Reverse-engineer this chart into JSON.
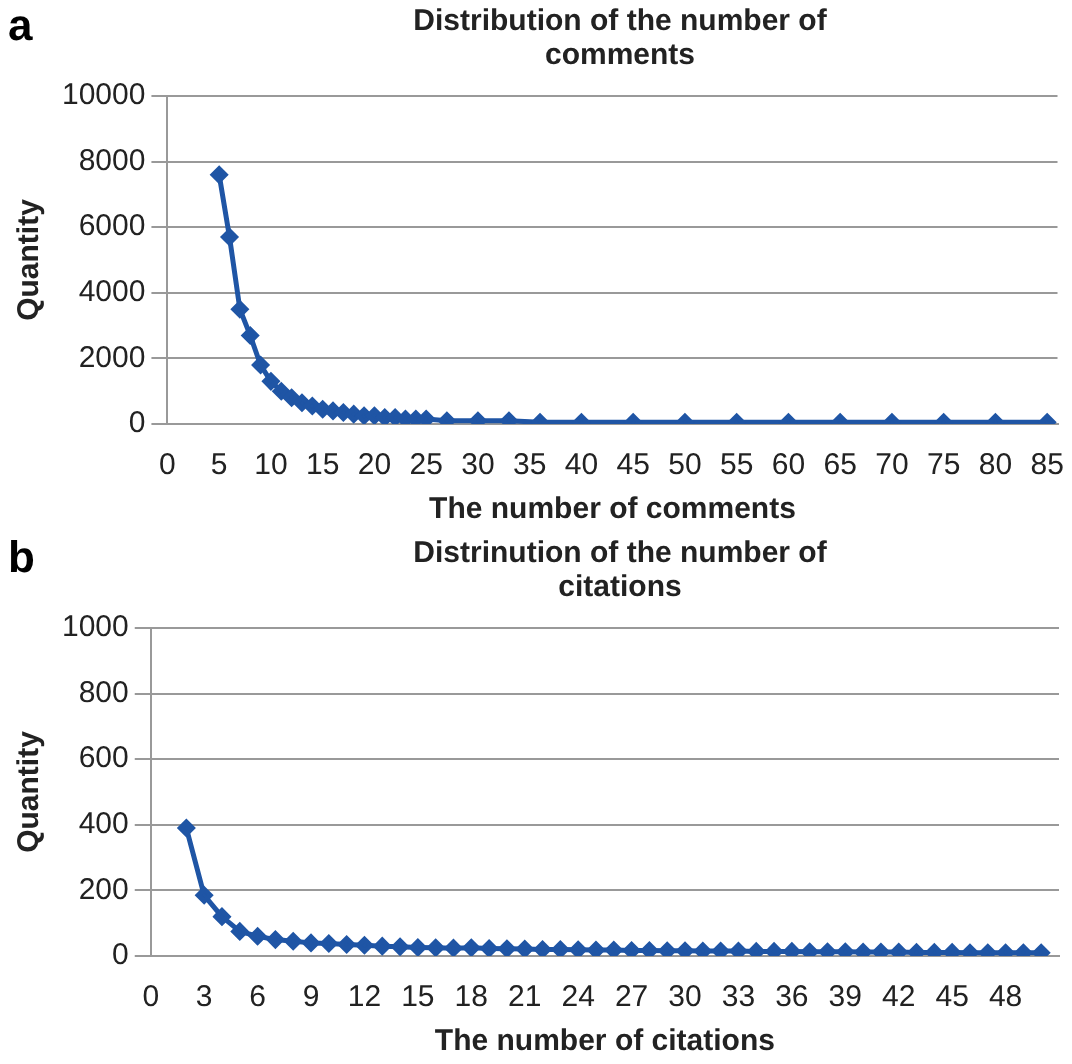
{
  "chart_data": [
    {
      "type": "line",
      "title": "Distribution of the number of comments",
      "xlabel": "The number of comments",
      "ylabel": "Quantity",
      "annotations": [
        "a"
      ],
      "x": [
        5,
        6,
        7,
        8,
        9,
        10,
        11,
        12,
        13,
        14,
        15,
        16,
        17,
        18,
        19,
        20,
        21,
        22,
        23,
        24,
        25,
        27,
        30,
        33,
        36,
        40,
        45,
        50,
        55,
        60,
        65,
        70,
        75,
        80,
        85
      ],
      "series": [
        {
          "color": "#1f55a5",
          "values": [
            7600,
            5700,
            3500,
            2700,
            1800,
            1300,
            1000,
            800,
            650,
            550,
            450,
            400,
            350,
            300,
            250,
            250,
            200,
            200,
            150,
            150,
            150,
            100,
            100,
            100,
            50,
            50,
            50,
            50,
            50,
            50,
            50,
            50,
            50,
            50,
            50
          ]
        }
      ],
      "xlim": [
        0,
        86
      ],
      "xticks": [
        0,
        5,
        10,
        15,
        20,
        25,
        30,
        35,
        40,
        45,
        50,
        55,
        60,
        65,
        70,
        75,
        80,
        85
      ],
      "ylim": [
        0,
        10000
      ],
      "yticks": [
        0,
        2000,
        4000,
        6000,
        8000,
        10000
      ],
      "grid": "y",
      "legend": false,
      "marker": "diamond",
      "line_style": "solid"
    },
    {
      "type": "line",
      "title": "Distrinution of the number of citations",
      "xlabel": "The number of citations",
      "ylabel": "Quantity",
      "annotations": [
        "b"
      ],
      "x": [
        2,
        3,
        4,
        5,
        6,
        7,
        8,
        9,
        10,
        11,
        12,
        13,
        14,
        15,
        16,
        17,
        18,
        19,
        20,
        21,
        22,
        23,
        24,
        25,
        26,
        27,
        28,
        29,
        30,
        31,
        32,
        33,
        34,
        35,
        36,
        37,
        38,
        39,
        40,
        41,
        42,
        43,
        44,
        45,
        46,
        47,
        48,
        49,
        50
      ],
      "series": [
        {
          "color": "#1f55a5",
          "values": [
            390,
            185,
            120,
            75,
            60,
            50,
            45,
            40,
            38,
            35,
            33,
            30,
            28,
            26,
            25,
            24,
            25,
            23,
            22,
            21,
            20,
            20,
            19,
            18,
            18,
            17,
            17,
            16,
            16,
            15,
            15,
            15,
            14,
            14,
            14,
            13,
            13,
            13,
            12,
            12,
            12,
            11,
            11,
            11,
            10,
            10,
            10,
            10,
            10
          ]
        }
      ],
      "xlim": [
        0,
        51
      ],
      "xticks": [
        0,
        3,
        6,
        9,
        12,
        15,
        18,
        21,
        24,
        27,
        30,
        33,
        36,
        39,
        42,
        45,
        48
      ],
      "ylim": [
        0,
        1000
      ],
      "yticks": [
        0,
        200,
        400,
        600,
        800,
        1000
      ],
      "grid": "y",
      "legend": false,
      "marker": "diamond",
      "line_style": "solid"
    }
  ]
}
